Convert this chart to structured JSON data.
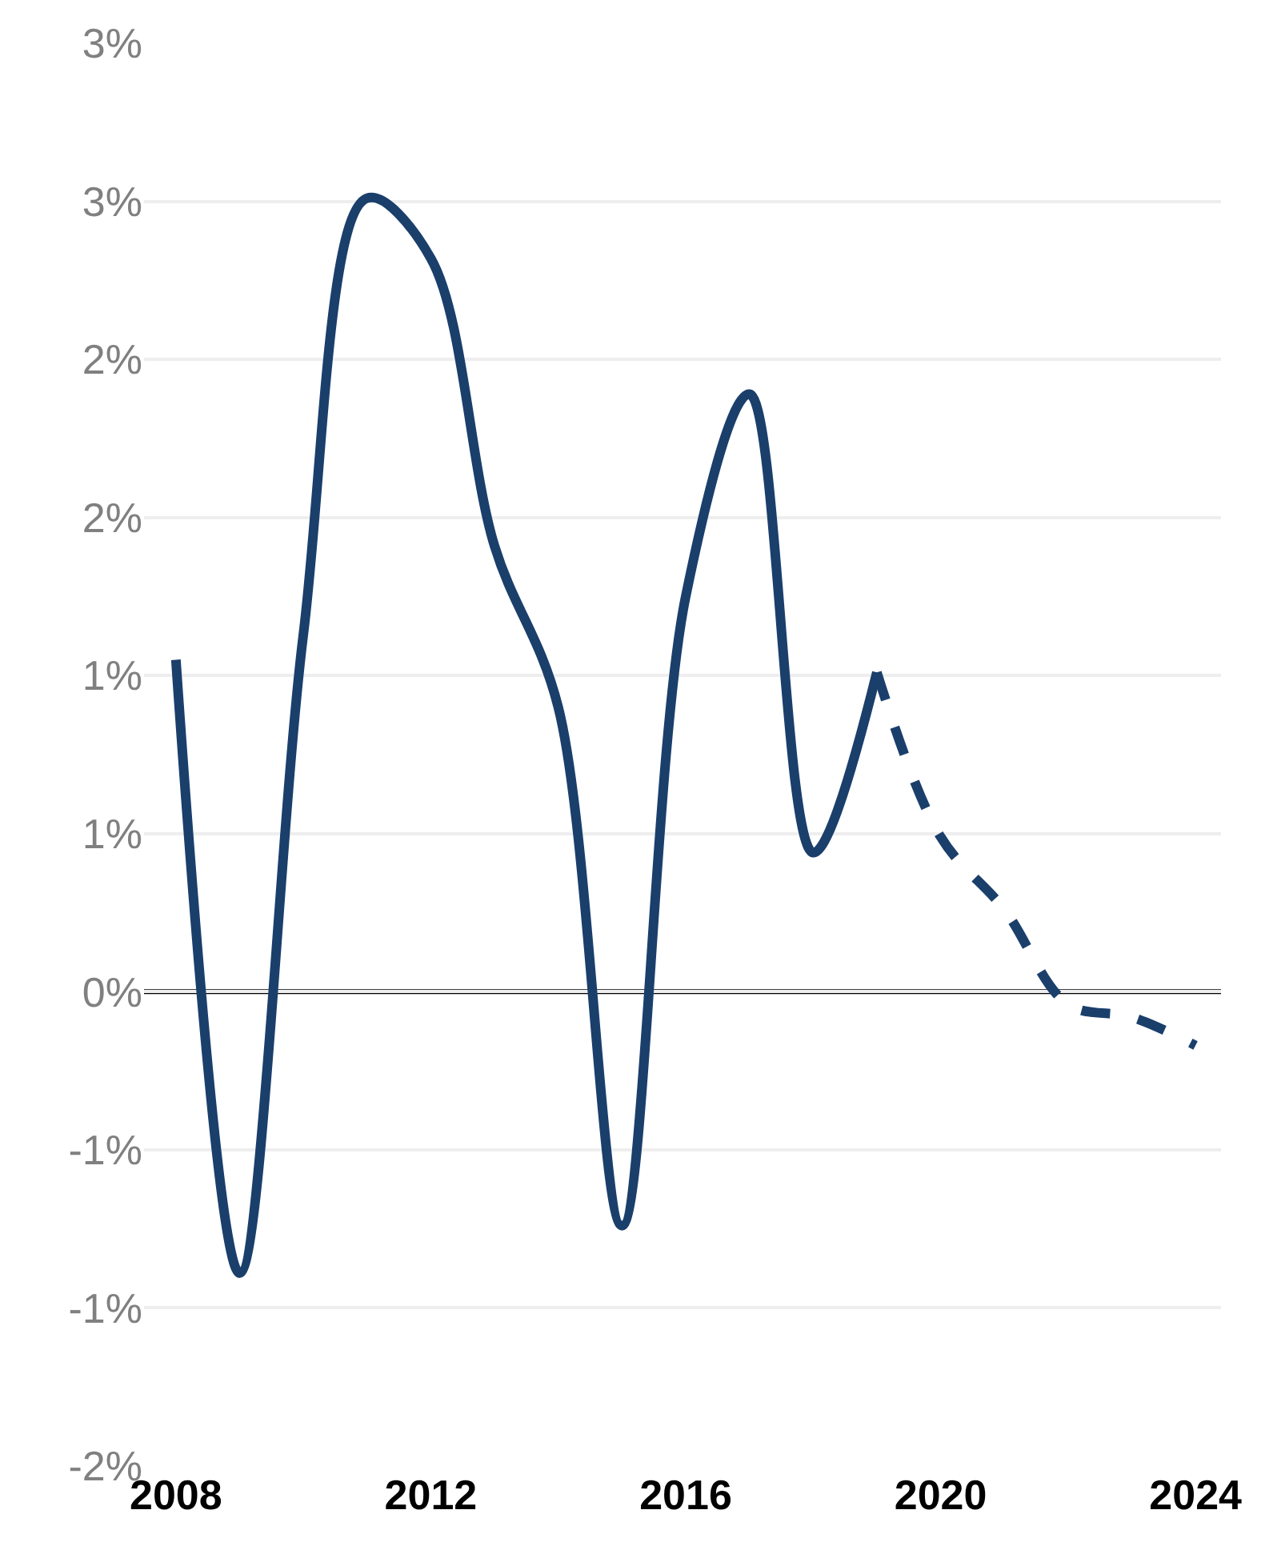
{
  "chart_data": {
    "type": "line",
    "series": [
      {
        "color": "#1b3f6b",
        "line_style": "solid",
        "x": [
          2008,
          2009,
          2010,
          2011,
          2012,
          2013,
          2014,
          2015,
          2016,
          2017,
          2018,
          2019
        ],
        "values": [
          1.05,
          -0.89,
          1.13,
          2.51,
          2.32,
          1.41,
          0.9,
          -0.74,
          1.25,
          1.89,
          0.44,
          1.01
        ]
      },
      {
        "color": "#1b3f6b",
        "line_style": "dashed",
        "x": [
          2019,
          2020,
          2021,
          2022,
          2023,
          2024
        ],
        "values": [
          1.01,
          0.49,
          0.26,
          -0.04,
          -0.08,
          -0.17
        ]
      }
    ],
    "xlim": [
      2007.5,
      2024.4
    ],
    "xticks": [
      2008,
      2012,
      2016,
      2020,
      2024
    ],
    "ylim": [
      -1.5,
      3
    ],
    "yticks": [
      {
        "value": -1.5,
        "label": "-2%"
      },
      {
        "value": -1,
        "label": "-1%"
      },
      {
        "value": -0.5,
        "label": "-1%"
      },
      {
        "value": 0,
        "label": "0%"
      },
      {
        "value": 0.5,
        "label": "1%"
      },
      {
        "value": 1,
        "label": "1%"
      },
      {
        "value": 1.5,
        "label": "2%"
      },
      {
        "value": 2,
        "label": "2%"
      },
      {
        "value": 2.5,
        "label": "3%"
      },
      {
        "value": 3,
        "label": "3%"
      }
    ],
    "grid": "y",
    "marker": "none",
    "ref_lines": [
      {
        "axis": "y",
        "value": 0,
        "color": "#000000",
        "line_style": "solid"
      }
    ]
  }
}
